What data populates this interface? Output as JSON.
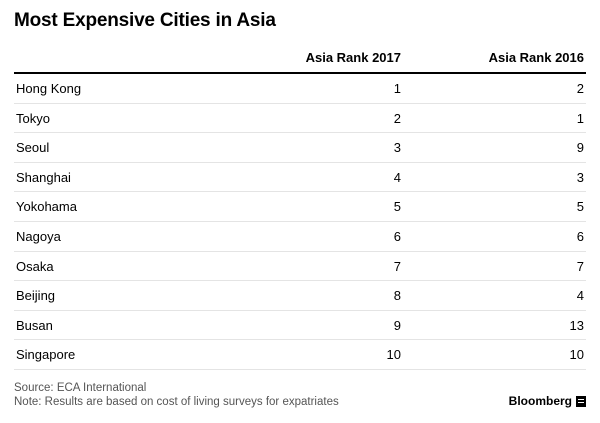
{
  "title": "Most Expensive Cities in Asia",
  "chart_data": {
    "type": "table",
    "columns": [
      "",
      "Asia Rank 2017",
      "Asia Rank 2016"
    ],
    "rows": [
      {
        "city": "Hong Kong",
        "rank2017": "1",
        "rank2016": "2"
      },
      {
        "city": "Tokyo",
        "rank2017": "2",
        "rank2016": "1"
      },
      {
        "city": "Seoul",
        "rank2017": "3",
        "rank2016": "9"
      },
      {
        "city": "Shanghai",
        "rank2017": "4",
        "rank2016": "3"
      },
      {
        "city": "Yokohama",
        "rank2017": "5",
        "rank2016": "5"
      },
      {
        "city": "Nagoya",
        "rank2017": "6",
        "rank2016": "6"
      },
      {
        "city": "Osaka",
        "rank2017": "7",
        "rank2016": "7"
      },
      {
        "city": "Beijing",
        "rank2017": "8",
        "rank2016": "4"
      },
      {
        "city": "Busan",
        "rank2017": "9",
        "rank2016": "13"
      },
      {
        "city": "Singapore",
        "rank2017": "10",
        "rank2016": "10"
      }
    ]
  },
  "source": "Source: ECA International",
  "note": "Note: Results are based on cost of living surveys for expatriates",
  "brand": "Bloomberg"
}
